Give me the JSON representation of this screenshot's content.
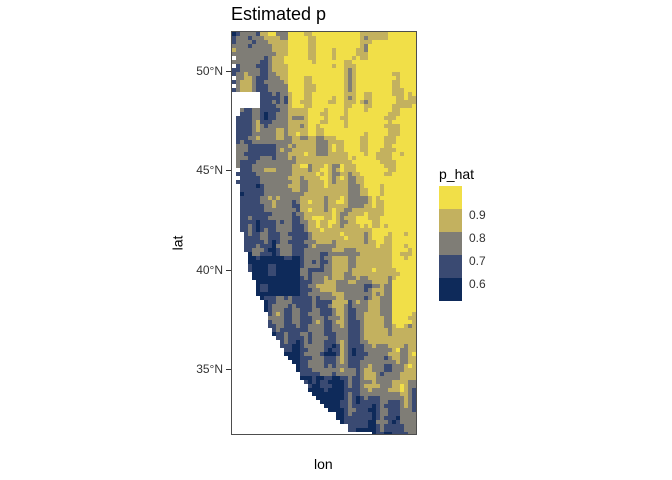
{
  "title": "Estimated p",
  "axes": {
    "xlabel": "lon",
    "ylabel": "lat",
    "yticks": [
      {
        "label": "50°N",
        "lat": 50
      },
      {
        "label": "45°N",
        "lat": 45
      },
      {
        "label": "40°N",
        "lat": 40
      },
      {
        "label": "35°N",
        "lat": 35
      }
    ],
    "lat_range": [
      31.7,
      52.0
    ]
  },
  "legend": {
    "title": "p_hat",
    "bins": [
      {
        "label": "",
        "color": "#f1df48"
      },
      {
        "label": "0.9",
        "color": "#c3b15f"
      },
      {
        "label": "0.8",
        "color": "#7f7d76"
      },
      {
        "label": "0.7",
        "color": "#3a4a72"
      },
      {
        "label": "0.6",
        "color": "#0e2a5a"
      }
    ]
  },
  "colors": {
    "very_high": "#f1df48",
    "high": "#c3b15f",
    "mid": "#7f7d76",
    "low": "#3a4a72",
    "very_low": "#0e2a5a",
    "missing": "#ffffff"
  }
}
